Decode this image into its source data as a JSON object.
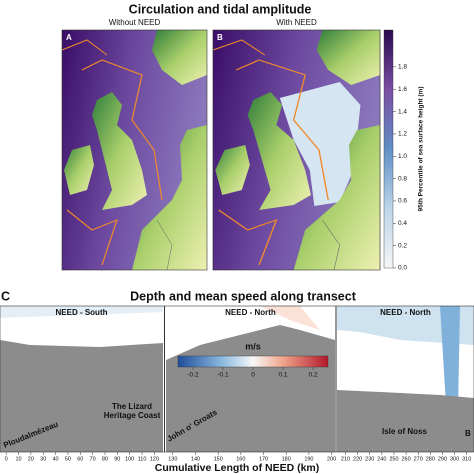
{
  "chart_data": [
    {
      "type": "map",
      "title": "Circulation and tidal amplitude",
      "panels": [
        {
          "label": "A",
          "title": "Without NEED"
        },
        {
          "label": "B",
          "title": "With NEED"
        }
      ],
      "colorbar": {
        "label": "95th Percentile of sea surface height (m)",
        "lim": [
          0,
          2.13
        ],
        "ticks": [
          {
            "value": 0,
            "label": "0.0"
          },
          0.2,
          0.4,
          0.6,
          0.8,
          {
            "value": 1,
            "label": "1.0"
          },
          1.2,
          1.4,
          1.6,
          1.8
        ]
      }
    },
    {
      "type": "transect",
      "panel_label": "C",
      "title": "Depth and mean speed along transect",
      "xlabel": "Cumulative Length of NEED (km)",
      "panels": [
        {
          "title": "NEED - South",
          "xlim": [
            -5,
            127
          ],
          "xticks": [
            0,
            10,
            20,
            30,
            40,
            50,
            60,
            70,
            80,
            90,
            100,
            110,
            120
          ]
        },
        {
          "title": "NEED - North",
          "xlim": [
            127,
            201.5
          ],
          "xticks": [
            130,
            140,
            150,
            160,
            170,
            180,
            190,
            200
          ]
        },
        {
          "title": "NEED - North",
          "xlim": [
            203,
            316
          ],
          "xticks": [
            210,
            220,
            230,
            240,
            250,
            260,
            270,
            280,
            290,
            300,
            310
          ]
        }
      ],
      "colorbar": {
        "label": "m/s",
        "lim": [
          -0.25,
          0.25
        ],
        "ticks": [
          -0.2,
          -0.1,
          0,
          0.1,
          0.2
        ]
      },
      "annotations": [
        "Ploudalmézeau",
        "The Lizard Heritage Coast",
        "John o' Groats",
        "Isle of Noss",
        "B"
      ]
    }
  ]
}
